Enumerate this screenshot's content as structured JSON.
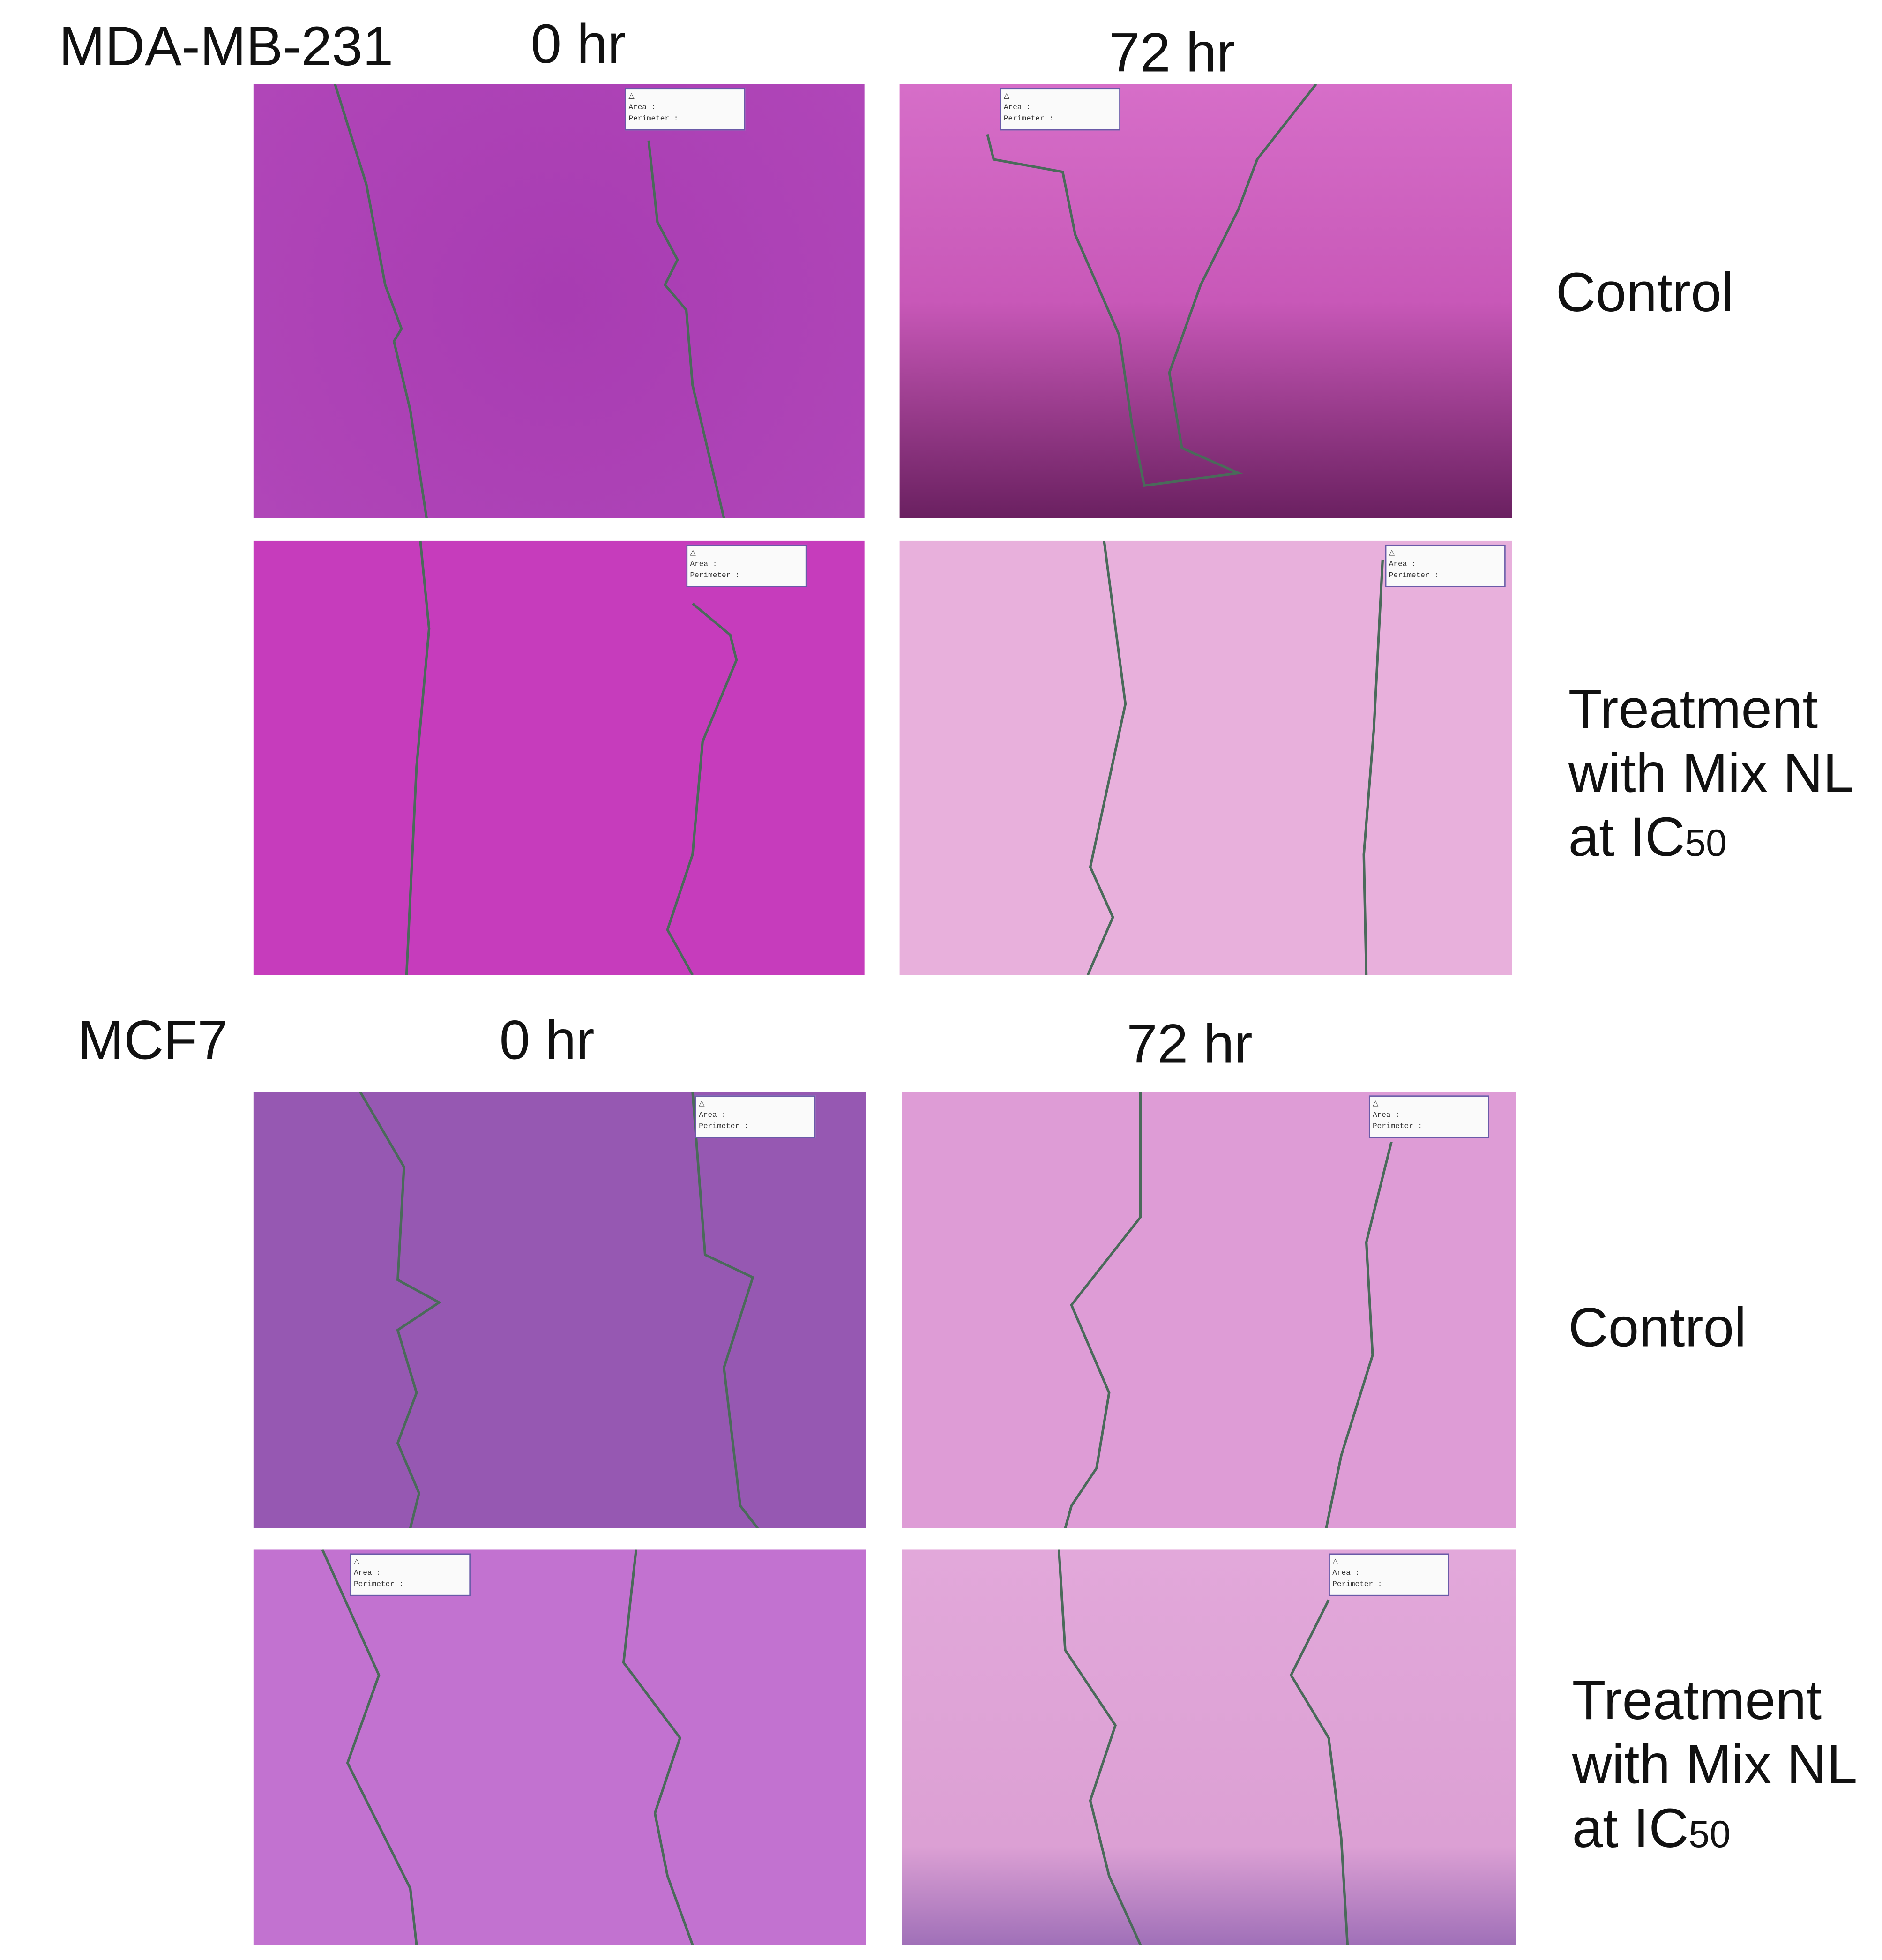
{
  "figure": {
    "sections": [
      {
        "cell_line": "MDA-MB-231",
        "time_0": "0 hr",
        "time_72": "72 hr",
        "rows": [
          {
            "label_lines": [
              "Control"
            ]
          },
          {
            "label_lines": [
              "Treatment",
              "with Mix NL",
              "at IC"
            ],
            "subscript": "50"
          }
        ]
      },
      {
        "cell_line": "MCF7",
        "time_0": "0 hr",
        "time_72": "72 hr",
        "rows": [
          {
            "label_lines": [
              "Control"
            ]
          },
          {
            "label_lines": [
              "Treatment",
              "with Mix NL",
              "at IC"
            ],
            "subscript": "50"
          }
        ]
      }
    ],
    "annotation": {
      "area_label": "Area :",
      "perimeter_label": "Perimeter :"
    },
    "colors": {
      "boundary_line": "#4a6a5a",
      "mda_0hr": "#b040b8",
      "mda_72hr_control": "#d868c8",
      "mda_0hr_treat": "#c83cbc",
      "mda_72hr_treat": "#e8b2dc",
      "mcf7_0hr": "#9858b4",
      "mcf7_72hr": "#e0a0d8",
      "mcf7_0hr_treat": "#c474d2",
      "mcf7_72hr_treat": "#e2a8da"
    }
  }
}
